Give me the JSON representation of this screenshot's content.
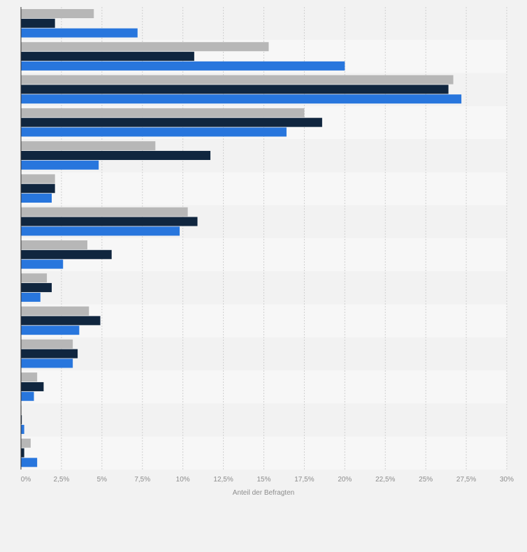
{
  "chart_data": {
    "type": "bar",
    "orientation": "horizontal",
    "xlabel": "Anteil der Befragten",
    "xlim": [
      0,
      30
    ],
    "ticks": [
      "0%",
      "2,5%",
      "5%",
      "7,5%",
      "10%",
      "12,5%",
      "15%",
      "17,5%",
      "20%",
      "22,5%",
      "25%",
      "27,5%",
      "30%"
    ],
    "grid": true,
    "categories_count": 14,
    "series": [
      {
        "color": "#b7b7b7",
        "values": [
          4.5,
          15.3,
          26.7,
          17.5,
          8.3,
          2.1,
          10.3,
          4.1,
          1.6,
          4.2,
          3.2,
          1.0,
          0.0,
          0.6
        ]
      },
      {
        "color": "#10263f",
        "values": [
          2.1,
          10.7,
          26.4,
          18.6,
          11.7,
          2.1,
          10.9,
          5.6,
          1.9,
          4.9,
          3.5,
          1.4,
          0.05,
          0.2
        ]
      },
      {
        "color": "#2876dd",
        "values": [
          7.2,
          20.0,
          27.2,
          16.4,
          4.8,
          1.9,
          9.8,
          2.6,
          1.2,
          3.6,
          3.2,
          0.8,
          0.2,
          1.0
        ]
      }
    ]
  }
}
